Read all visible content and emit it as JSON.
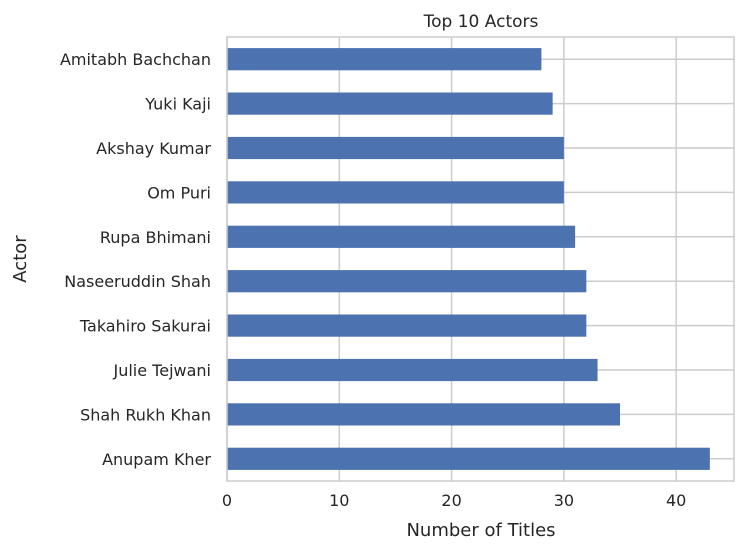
{
  "chart_data": {
    "type": "bar",
    "orientation": "horizontal",
    "title": "Top 10 Actors",
    "xlabel": "Number of Titles",
    "ylabel": "Actor",
    "categories": [
      "Anupam Kher",
      "Shah Rukh Khan",
      "Julie Tejwani",
      "Takahiro Sakurai",
      "Naseeruddin Shah",
      "Rupa Bhimani",
      "Om Puri",
      "Akshay Kumar",
      "Yuki Kaji",
      "Amitabh Bachchan"
    ],
    "values": [
      43,
      35,
      33,
      32,
      32,
      31,
      30,
      30,
      29,
      28
    ],
    "xlim": [
      0,
      45.15
    ],
    "xticks": [
      0,
      10,
      20,
      30,
      40
    ],
    "grid": true,
    "bar_color": "#4c72b0"
  }
}
